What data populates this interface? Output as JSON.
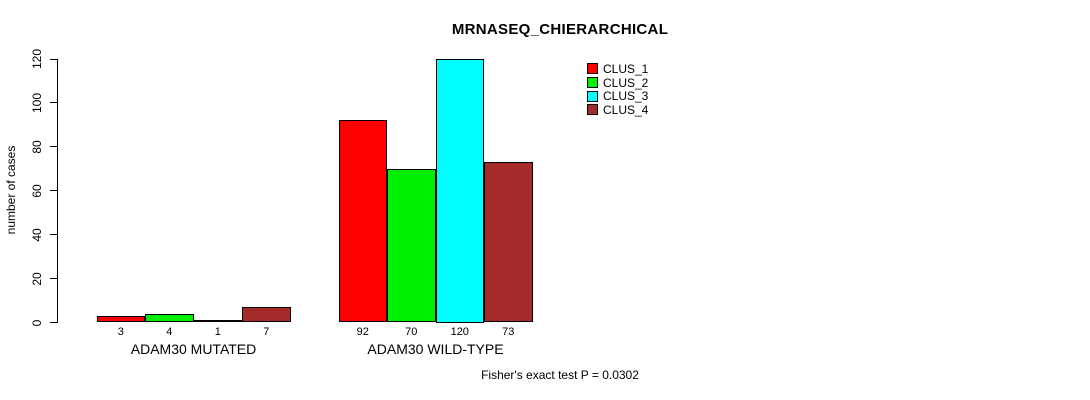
{
  "chart_data": {
    "type": "bar",
    "title": "MRNASEQ_CHIERARCHICAL",
    "ylabel": "number of cases",
    "xlabel": "",
    "ylim": [
      0,
      120
    ],
    "yticks": [
      0,
      20,
      40,
      60,
      80,
      100,
      120
    ],
    "categories": [
      "ADAM30 MUTATED",
      "ADAM30 WILD-TYPE"
    ],
    "series": [
      {
        "name": "CLUS_1",
        "color": "#FF0000",
        "values": [
          3,
          92
        ]
      },
      {
        "name": "CLUS_2",
        "color": "#00EE00",
        "values": [
          4,
          70
        ]
      },
      {
        "name": "CLUS_3",
        "color": "#00FFFF",
        "values": [
          1,
          120
        ]
      },
      {
        "name": "CLUS_4",
        "color": "#A52A2A",
        "values": [
          7,
          73
        ]
      }
    ],
    "bar_value_labels": true,
    "grid": false,
    "legend_position": "top-right",
    "annotation": "Fisher's exact test P = 0.0302"
  }
}
